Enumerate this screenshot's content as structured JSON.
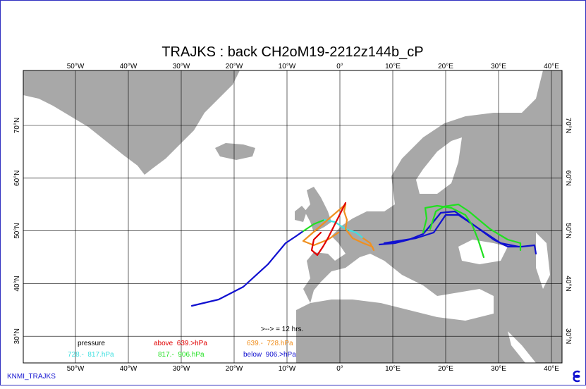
{
  "title": "TRAJKS : back CH2oM19-2212z144b_cP",
  "longitude_labels": [
    "50°W",
    "40°W",
    "30°W",
    "20°W",
    "10°W",
    "0°",
    "10°E",
    "20°E",
    "30°E",
    "40°E"
  ],
  "latitude_labels": [
    "70°N",
    "60°N",
    "50°N",
    "40°N",
    "30°N"
  ],
  "legend": {
    "heading": "pressure",
    "items": [
      {
        "label": "above  639.>hPa",
        "color": "#e00000"
      },
      {
        "label": "639.-  728.hPa",
        "color": "#f09020"
      },
      {
        "label": "728.-  817.hPa",
        "color": "#40e0e0"
      },
      {
        "label": "817.-  906.hPa",
        "color": "#20e020"
      },
      {
        "label": "below  906.>hPa",
        "color": "#1010d0"
      }
    ]
  },
  "time_step": ">--> = 12 hrs.",
  "footer": "KNMI_TRAJKS"
}
